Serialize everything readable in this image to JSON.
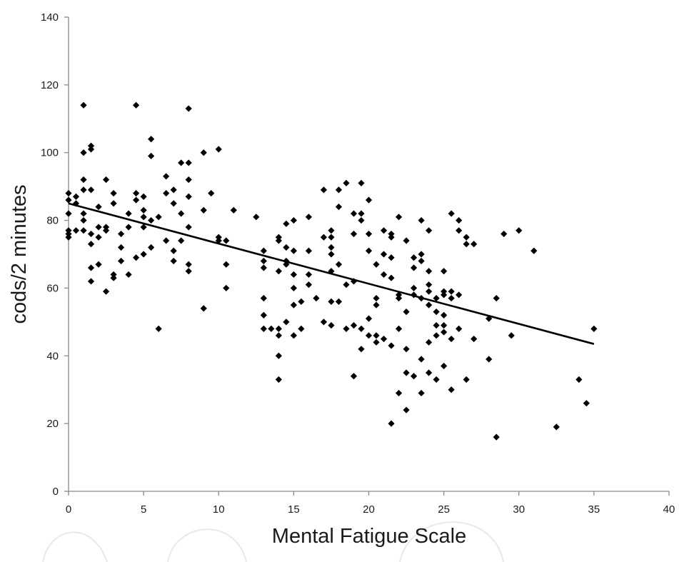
{
  "chart_data": {
    "type": "scatter",
    "title": "",
    "xlabel": "Mental Fatigue Scale",
    "ylabel": "cods/2 minutes",
    "xlim": [
      0,
      40
    ],
    "ylim": [
      0,
      140
    ],
    "x_ticks": [
      0,
      5,
      10,
      15,
      20,
      25,
      30,
      35,
      40
    ],
    "y_ticks": [
      0,
      20,
      40,
      60,
      80,
      100,
      120,
      140
    ],
    "grid": false,
    "legend": "none",
    "marker": "diamond",
    "marker_color": "#000000",
    "trendline": {
      "type": "linear",
      "x_start": 0,
      "y_start": 85,
      "x_end": 35,
      "y_end": 43.5,
      "color": "#000000"
    },
    "points": [
      [
        0,
        88
      ],
      [
        0,
        86
      ],
      [
        0,
        82
      ],
      [
        0,
        77
      ],
      [
        0,
        76
      ],
      [
        0,
        75
      ],
      [
        0.5,
        87
      ],
      [
        0.5,
        85
      ],
      [
        0.5,
        77
      ],
      [
        1,
        114
      ],
      [
        1,
        100
      ],
      [
        1,
        92
      ],
      [
        1,
        89
      ],
      [
        1,
        82
      ],
      [
        1,
        80
      ],
      [
        1,
        77
      ],
      [
        1.5,
        102
      ],
      [
        1.5,
        101
      ],
      [
        1.5,
        89
      ],
      [
        1.5,
        76
      ],
      [
        1.5,
        73
      ],
      [
        1.5,
        66
      ],
      [
        1.5,
        62
      ],
      [
        2,
        84
      ],
      [
        2,
        78
      ],
      [
        2,
        75
      ],
      [
        2,
        67
      ],
      [
        2.5,
        92
      ],
      [
        2.5,
        78
      ],
      [
        2.5,
        77
      ],
      [
        2.5,
        59
      ],
      [
        3,
        88
      ],
      [
        3,
        85
      ],
      [
        3,
        64
      ],
      [
        3,
        63
      ],
      [
        3.5,
        76
      ],
      [
        3.5,
        72
      ],
      [
        3.5,
        68
      ],
      [
        4,
        82
      ],
      [
        4,
        78
      ],
      [
        4,
        64
      ],
      [
        4.5,
        114
      ],
      [
        4.5,
        88
      ],
      [
        4.5,
        86
      ],
      [
        4.5,
        69
      ],
      [
        5,
        87
      ],
      [
        5,
        83
      ],
      [
        5,
        81
      ],
      [
        5,
        78
      ],
      [
        5,
        70
      ],
      [
        5.5,
        104
      ],
      [
        5.5,
        99
      ],
      [
        5.5,
        80
      ],
      [
        5.5,
        72
      ],
      [
        6,
        81
      ],
      [
        6,
        48
      ],
      [
        6.5,
        93
      ],
      [
        6.5,
        88
      ],
      [
        6.5,
        74
      ],
      [
        7,
        89
      ],
      [
        7,
        85
      ],
      [
        7,
        71
      ],
      [
        7,
        68
      ],
      [
        7.5,
        97
      ],
      [
        7.5,
        82
      ],
      [
        7.5,
        74
      ],
      [
        8,
        113
      ],
      [
        8,
        97
      ],
      [
        8,
        92
      ],
      [
        8,
        87
      ],
      [
        8,
        78
      ],
      [
        8,
        67
      ],
      [
        8,
        65
      ],
      [
        9,
        100
      ],
      [
        9,
        83
      ],
      [
        9,
        54
      ],
      [
        9.5,
        88
      ],
      [
        10,
        101
      ],
      [
        10,
        75
      ],
      [
        10,
        74
      ],
      [
        10.5,
        74
      ],
      [
        10.5,
        67
      ],
      [
        10.5,
        60
      ],
      [
        11,
        83
      ],
      [
        12.5,
        81
      ],
      [
        13,
        71
      ],
      [
        13,
        68
      ],
      [
        13,
        66
      ],
      [
        13,
        57
      ],
      [
        13,
        52
      ],
      [
        13,
        48
      ],
      [
        13.5,
        48
      ],
      [
        14,
        75
      ],
      [
        14,
        74
      ],
      [
        14,
        65
      ],
      [
        14,
        48
      ],
      [
        14,
        46
      ],
      [
        14,
        40
      ],
      [
        14,
        33
      ],
      [
        14.5,
        79
      ],
      [
        14.5,
        72
      ],
      [
        14.5,
        68
      ],
      [
        14.5,
        67
      ],
      [
        14.5,
        50
      ],
      [
        15,
        80
      ],
      [
        15,
        71
      ],
      [
        15,
        64
      ],
      [
        15,
        60
      ],
      [
        15,
        55
      ],
      [
        15,
        46
      ],
      [
        15.5,
        56
      ],
      [
        15.5,
        48
      ],
      [
        16,
        81
      ],
      [
        16,
        71
      ],
      [
        16,
        64
      ],
      [
        16,
        61
      ],
      [
        16.5,
        57
      ],
      [
        17,
        89
      ],
      [
        17,
        75
      ],
      [
        17,
        50
      ],
      [
        17.5,
        77
      ],
      [
        17.5,
        75
      ],
      [
        17.5,
        72
      ],
      [
        17.5,
        70
      ],
      [
        17.5,
        65
      ],
      [
        17.5,
        56
      ],
      [
        17.5,
        49
      ],
      [
        18,
        89
      ],
      [
        18,
        84
      ],
      [
        18,
        67
      ],
      [
        18,
        56
      ],
      [
        18.5,
        91
      ],
      [
        18.5,
        61
      ],
      [
        18.5,
        48
      ],
      [
        19,
        82
      ],
      [
        19,
        76
      ],
      [
        19,
        62
      ],
      [
        19,
        49
      ],
      [
        19,
        34
      ],
      [
        19.5,
        91
      ],
      [
        19.5,
        82
      ],
      [
        19.5,
        80
      ],
      [
        19.5,
        48
      ],
      [
        19.5,
        42
      ],
      [
        20,
        86
      ],
      [
        20,
        76
      ],
      [
        20,
        71
      ],
      [
        20,
        51
      ],
      [
        20,
        46
      ],
      [
        20.5,
        67
      ],
      [
        20.5,
        57
      ],
      [
        20.5,
        55
      ],
      [
        20.5,
        46
      ],
      [
        20.5,
        44
      ],
      [
        21,
        77
      ],
      [
        21,
        70
      ],
      [
        21,
        64
      ],
      [
        21,
        45
      ],
      [
        21.5,
        76
      ],
      [
        21.5,
        75
      ],
      [
        21.5,
        69
      ],
      [
        21.5,
        63
      ],
      [
        21.5,
        43
      ],
      [
        21.5,
        20
      ],
      [
        22,
        81
      ],
      [
        22,
        58
      ],
      [
        22,
        57
      ],
      [
        22,
        48
      ],
      [
        22,
        29
      ],
      [
        22.5,
        74
      ],
      [
        22.5,
        53
      ],
      [
        22.5,
        42
      ],
      [
        22.5,
        35
      ],
      [
        22.5,
        24
      ],
      [
        23,
        69
      ],
      [
        23,
        66
      ],
      [
        23,
        60
      ],
      [
        23,
        58
      ],
      [
        23,
        34
      ],
      [
        23.5,
        80
      ],
      [
        23.5,
        70
      ],
      [
        23.5,
        68
      ],
      [
        23.5,
        57
      ],
      [
        23.5,
        39
      ],
      [
        23.5,
        29
      ],
      [
        24,
        77
      ],
      [
        24,
        65
      ],
      [
        24,
        61
      ],
      [
        24,
        59
      ],
      [
        24,
        55
      ],
      [
        24,
        44
      ],
      [
        24,
        35
      ],
      [
        24.5,
        57
      ],
      [
        24.5,
        53
      ],
      [
        24.5,
        49
      ],
      [
        24.5,
        46
      ],
      [
        24.5,
        33
      ],
      [
        25,
        65
      ],
      [
        25,
        59
      ],
      [
        25,
        58
      ],
      [
        25,
        52
      ],
      [
        25,
        49
      ],
      [
        25,
        47
      ],
      [
        25,
        37
      ],
      [
        25.5,
        82
      ],
      [
        25.5,
        59
      ],
      [
        25.5,
        57
      ],
      [
        25.5,
        45
      ],
      [
        25.5,
        30
      ],
      [
        26,
        80
      ],
      [
        26,
        77
      ],
      [
        26,
        58
      ],
      [
        26,
        48
      ],
      [
        26.5,
        75
      ],
      [
        26.5,
        73
      ],
      [
        26.5,
        33
      ],
      [
        27,
        73
      ],
      [
        27,
        45
      ],
      [
        28,
        51
      ],
      [
        28,
        39
      ],
      [
        28.5,
        57
      ],
      [
        28.5,
        16
      ],
      [
        29,
        76
      ],
      [
        29.5,
        46
      ],
      [
        30,
        77
      ],
      [
        31,
        71
      ],
      [
        32.5,
        19
      ],
      [
        34,
        33
      ],
      [
        34.5,
        26
      ],
      [
        35,
        48
      ]
    ]
  }
}
